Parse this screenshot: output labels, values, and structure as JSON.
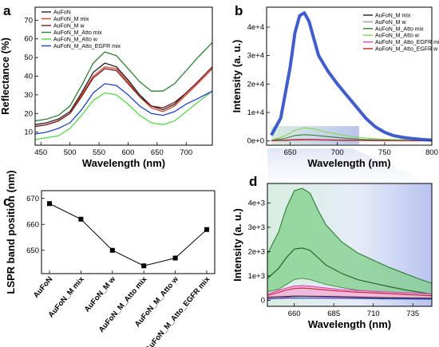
{
  "panels": {
    "a": "a",
    "b": "b",
    "c": "c",
    "d": "d"
  },
  "chart_data": [
    {
      "panel": "a",
      "type": "line",
      "xlabel": "Wavelength (nm)",
      "ylabel": "Reflectance (%)",
      "xlim": [
        440,
        745
      ],
      "ylim": [
        3,
        77
      ],
      "xticks": [
        450,
        500,
        550,
        600,
        650,
        700
      ],
      "yticks": [
        10,
        20,
        30,
        40,
        50,
        60,
        70
      ],
      "legend_position": "top-left",
      "series": [
        {
          "name": "AuFoN",
          "color": "#222222",
          "x": [
            440,
            460,
            480,
            500,
            520,
            540,
            560,
            580,
            600,
            620,
            640,
            660,
            680,
            700,
            720,
            745
          ],
          "y": [
            14,
            15,
            17,
            21,
            31,
            42,
            47,
            45,
            38,
            30,
            24,
            22,
            25,
            31,
            37,
            45
          ]
        },
        {
          "name": "AuFoN_M mix",
          "color": "#d9432f",
          "x": [
            440,
            460,
            480,
            500,
            520,
            540,
            560,
            580,
            600,
            620,
            640,
            660,
            680,
            700,
            720,
            745
          ],
          "y": [
            13,
            14,
            16,
            20,
            30,
            40,
            45,
            44,
            37,
            29,
            23,
            21,
            24,
            30,
            36,
            44
          ]
        },
        {
          "name": "AuFoN_M w",
          "color": "#7a1b1b",
          "x": [
            440,
            460,
            480,
            500,
            520,
            540,
            560,
            580,
            600,
            620,
            640,
            660,
            680,
            700,
            720,
            745
          ],
          "y": [
            13,
            14,
            16,
            20,
            29,
            39,
            44,
            43,
            36,
            29,
            24,
            23,
            26,
            31,
            37,
            45
          ]
        },
        {
          "name": "AuFoN_M_Atto mix",
          "color": "#2e7d32",
          "x": [
            440,
            460,
            480,
            500,
            520,
            540,
            560,
            580,
            600,
            620,
            640,
            660,
            680,
            700,
            720,
            745
          ],
          "y": [
            16,
            17,
            19,
            24,
            35,
            47,
            53,
            51,
            44,
            37,
            32,
            32,
            36,
            43,
            50,
            58
          ]
        },
        {
          "name": "AuFoN_M_Atto w",
          "color": "#56d64a",
          "x": [
            440,
            460,
            480,
            500,
            520,
            540,
            560,
            580,
            600,
            620,
            640,
            660,
            680,
            700,
            720,
            745
          ],
          "y": [
            6,
            7,
            8,
            12,
            19,
            27,
            31,
            30,
            25,
            19,
            15,
            14,
            16,
            21,
            26,
            32
          ]
        },
        {
          "name": "AuFoN_M_Atto_EGFR mix",
          "color": "#1f3fc4",
          "x": [
            440,
            460,
            480,
            500,
            520,
            540,
            560,
            580,
            600,
            620,
            640,
            660,
            680,
            700,
            720,
            745
          ],
          "y": [
            9,
            10,
            12,
            15,
            22,
            31,
            36,
            35,
            30,
            24,
            20,
            19,
            21,
            25,
            28,
            32
          ]
        }
      ]
    },
    {
      "panel": "b",
      "type": "line",
      "xlabel": "Wavelength (nm)",
      "ylabel": "Intensity (a. u.)",
      "xlim": [
        625,
        800
      ],
      "ylim": [
        -1500,
        47000
      ],
      "xticks": [
        650,
        700,
        750,
        800
      ],
      "yticks": [
        0,
        10000,
        20000,
        30000,
        40000
      ],
      "ytick_labels": [
        "0e+0",
        "1e+4",
        "2e+4",
        "3e+4",
        "4e+4"
      ],
      "legend_position": "top-right",
      "series": [
        {
          "name": "AuFoN_M mix",
          "color": "#222222",
          "x": [
            630,
            645,
            655,
            665,
            675,
            690,
            710,
            730,
            750,
            780,
            800
          ],
          "y": [
            60,
            120,
            250,
            350,
            300,
            200,
            120,
            80,
            50,
            30,
            20
          ]
        },
        {
          "name": "AuFoN_M w",
          "color": "#9a9a9a",
          "x": [
            630,
            645,
            655,
            665,
            675,
            690,
            710,
            730,
            750,
            780,
            800
          ],
          "y": [
            50,
            100,
            200,
            280,
            240,
            160,
            100,
            60,
            40,
            20,
            15
          ]
        },
        {
          "name": "AuFoN_M_Atto mix",
          "color": "#2e7d32",
          "x": [
            630,
            645,
            655,
            665,
            675,
            690,
            710,
            730,
            750,
            780,
            800
          ],
          "y": [
            200,
            900,
            1900,
            2200,
            2000,
            1500,
            900,
            500,
            300,
            150,
            100
          ]
        },
        {
          "name": "AuFoN_M_Atto w",
          "color": "#7ed957",
          "x": [
            630,
            645,
            655,
            665,
            675,
            690,
            710,
            730,
            750,
            780,
            800
          ],
          "y": [
            300,
            1800,
            3800,
            4600,
            4200,
            3000,
            1800,
            1000,
            600,
            300,
            200
          ]
        },
        {
          "name": "AuFoN_M_Atto_EGFR mix",
          "color": "#e040c0",
          "x": [
            630,
            645,
            655,
            665,
            675,
            690,
            710,
            730,
            750,
            780,
            800
          ],
          "y": [
            100,
            300,
            550,
            600,
            550,
            420,
            280,
            180,
            110,
            60,
            40
          ]
        },
        {
          "name": "AuFoN_M_Atto_EGFR w",
          "color": "#c62828",
          "x": [
            630,
            645,
            655,
            665,
            675,
            690,
            710,
            730,
            750,
            780,
            800
          ],
          "y": [
            80,
            250,
            450,
            500,
            460,
            350,
            230,
            150,
            90,
            50,
            30
          ]
        },
        {
          "name": "",
          "color": "#1f3fc4",
          "x": [
            630,
            640,
            650,
            655,
            660,
            665,
            670,
            675,
            680,
            690,
            700,
            710,
            720,
            730,
            740,
            750,
            760,
            770,
            780,
            790,
            800
          ],
          "y": [
            2000,
            8000,
            26000,
            38000,
            44000,
            45000,
            42000,
            36000,
            30000,
            24500,
            20000,
            16000,
            12000,
            8000,
            5000,
            3000,
            1800,
            1200,
            800,
            500,
            300
          ]
        }
      ]
    },
    {
      "panel": "c",
      "type": "line",
      "xlabel": "",
      "ylabel": "LSPR band position (nm)",
      "ylim": [
        641,
        673
      ],
      "yticks": [
        650,
        660,
        670
      ],
      "categories": [
        "AuFoN",
        "AuFoN_M mix",
        "AuFoN_M w",
        "AuFoN_M_Atto mix",
        "AuFoN_M_Atto w",
        "AuFoN_M_Atto_EGFR mix"
      ],
      "values": [
        668,
        662,
        650,
        644,
        647,
        658
      ]
    },
    {
      "panel": "d",
      "type": "area",
      "xlabel": "Wavelength (nm)",
      "ylabel": "Intensity (a. u.)",
      "xlim": [
        643,
        747
      ],
      "ylim": [
        -250,
        4800
      ],
      "xticks": [
        660,
        685,
        710,
        735
      ],
      "yticks": [
        0,
        1000,
        2000,
        3000,
        4000
      ],
      "ytick_labels": [
        "0",
        "1e+3",
        "2e+3",
        "3e+3",
        "4e+3"
      ],
      "series": [
        {
          "name": "AuFoN_M_Atto w",
          "color": "#2e7d32",
          "fill": "#7fcf8a",
          "x": [
            643,
            650,
            655,
            660,
            665,
            670,
            675,
            680,
            690,
            700,
            710,
            720,
            730,
            740,
            747
          ],
          "y": [
            1900,
            2800,
            3800,
            4500,
            4600,
            4400,
            3700,
            3100,
            2400,
            1950,
            1650,
            1350,
            1100,
            850,
            700
          ],
          "y_low": [
            350,
            450,
            650,
            850,
            900,
            850,
            750,
            650,
            520,
            420,
            340,
            280,
            230,
            190,
            160
          ]
        },
        {
          "name": "AuFoN_M_Atto mix",
          "color": "#1b5e20",
          "fill": "",
          "x": [
            643,
            650,
            655,
            660,
            665,
            670,
            675,
            680,
            690,
            700,
            710,
            720,
            730,
            740,
            747
          ],
          "y": [
            900,
            1300,
            1750,
            2100,
            2150,
            2050,
            1750,
            1450,
            1100,
            850,
            700,
            560,
            430,
            320,
            250
          ]
        },
        {
          "name": "AuFoN_M_Atto_EGFR mix",
          "color": "#e040c0",
          "fill": "#f7a8d8",
          "x": [
            643,
            650,
            655,
            660,
            665,
            670,
            675,
            680,
            690,
            700,
            710,
            720,
            730,
            740,
            747
          ],
          "y": [
            250,
            400,
            500,
            580,
            600,
            580,
            540,
            500,
            440,
            400,
            370,
            340,
            310,
            280,
            260
          ],
          "y_low": [
            40,
            80,
            120,
            150,
            160,
            150,
            140,
            130,
            120,
            110,
            100,
            90,
            80,
            70,
            60
          ]
        },
        {
          "name": "AuFoN_M_Atto_EGFR w",
          "color": "#c62828",
          "fill": "",
          "x": [
            643,
            650,
            655,
            660,
            665,
            670,
            675,
            680,
            690,
            700,
            710,
            720,
            730,
            740,
            747
          ],
          "y": [
            200,
            320,
            420,
            480,
            500,
            480,
            450,
            420,
            370,
            330,
            300,
            270,
            240,
            210,
            190
          ]
        },
        {
          "name": "AuFoN_M mix",
          "color": "#222222",
          "fill": "",
          "x": [
            643,
            660,
            680,
            700,
            720,
            747
          ],
          "y": [
            120,
            170,
            160,
            130,
            100,
            80
          ]
        },
        {
          "name": "AuFoN_M w",
          "color": "#1f3fc4",
          "fill": "",
          "x": [
            643,
            660,
            680,
            700,
            720,
            747
          ],
          "y": [
            60,
            90,
            85,
            70,
            55,
            45
          ]
        }
      ]
    }
  ]
}
